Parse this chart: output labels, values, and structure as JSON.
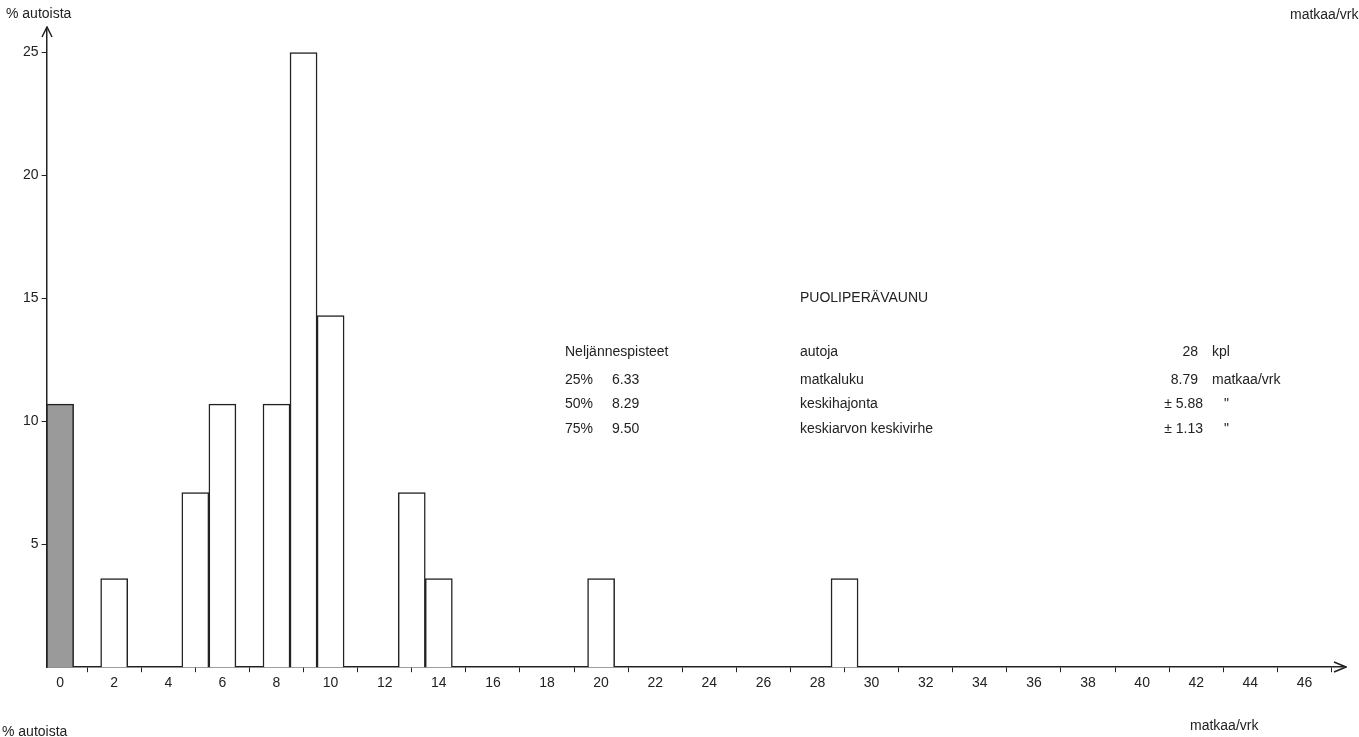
{
  "chart_data": {
    "type": "bar",
    "title": "PUOLIPERÄVAUNU",
    "xlabel": "matkaa/vrk",
    "ylabel": "% autoista",
    "x": [
      0,
      2,
      5,
      6,
      8,
      9,
      10,
      13,
      14,
      20,
      29
    ],
    "values": [
      10.7,
      3.6,
      7.1,
      10.7,
      10.7,
      25,
      14.3,
      7.1,
      3.6,
      3.6,
      3.6
    ],
    "colors": [
      "#9a9a9a",
      "#ffffff",
      "#ffffff",
      "#ffffff",
      "#ffffff",
      "#ffffff",
      "#ffffff",
      "#ffffff",
      "#ffffff",
      "#ffffff",
      "#ffffff"
    ],
    "xlim": [
      -0.5,
      47.5
    ],
    "xticks": [
      0,
      2,
      4,
      6,
      8,
      10,
      12,
      14,
      16,
      18,
      20,
      22,
      24,
      26,
      28,
      30,
      32,
      34,
      36,
      38,
      40,
      42,
      44,
      46
    ],
    "ylim": [
      0,
      26
    ],
    "yticks": [
      5,
      10,
      15,
      20,
      25
    ],
    "grid": false,
    "legend": false,
    "annotations": [
      "Neljännespisteet",
      "25%",
      "6.33",
      "50%",
      "8.29",
      "75%",
      "9.50",
      "autoja",
      "28",
      "kpl",
      "matkaluku",
      "8.79",
      "matkaa/vrk",
      "keskihajonta",
      "± 5.88",
      "\"",
      "keskiarvon keskivirhe",
      "± 1.13",
      "\"",
      "% autoista",
      "matkaa/vrk"
    ]
  }
}
